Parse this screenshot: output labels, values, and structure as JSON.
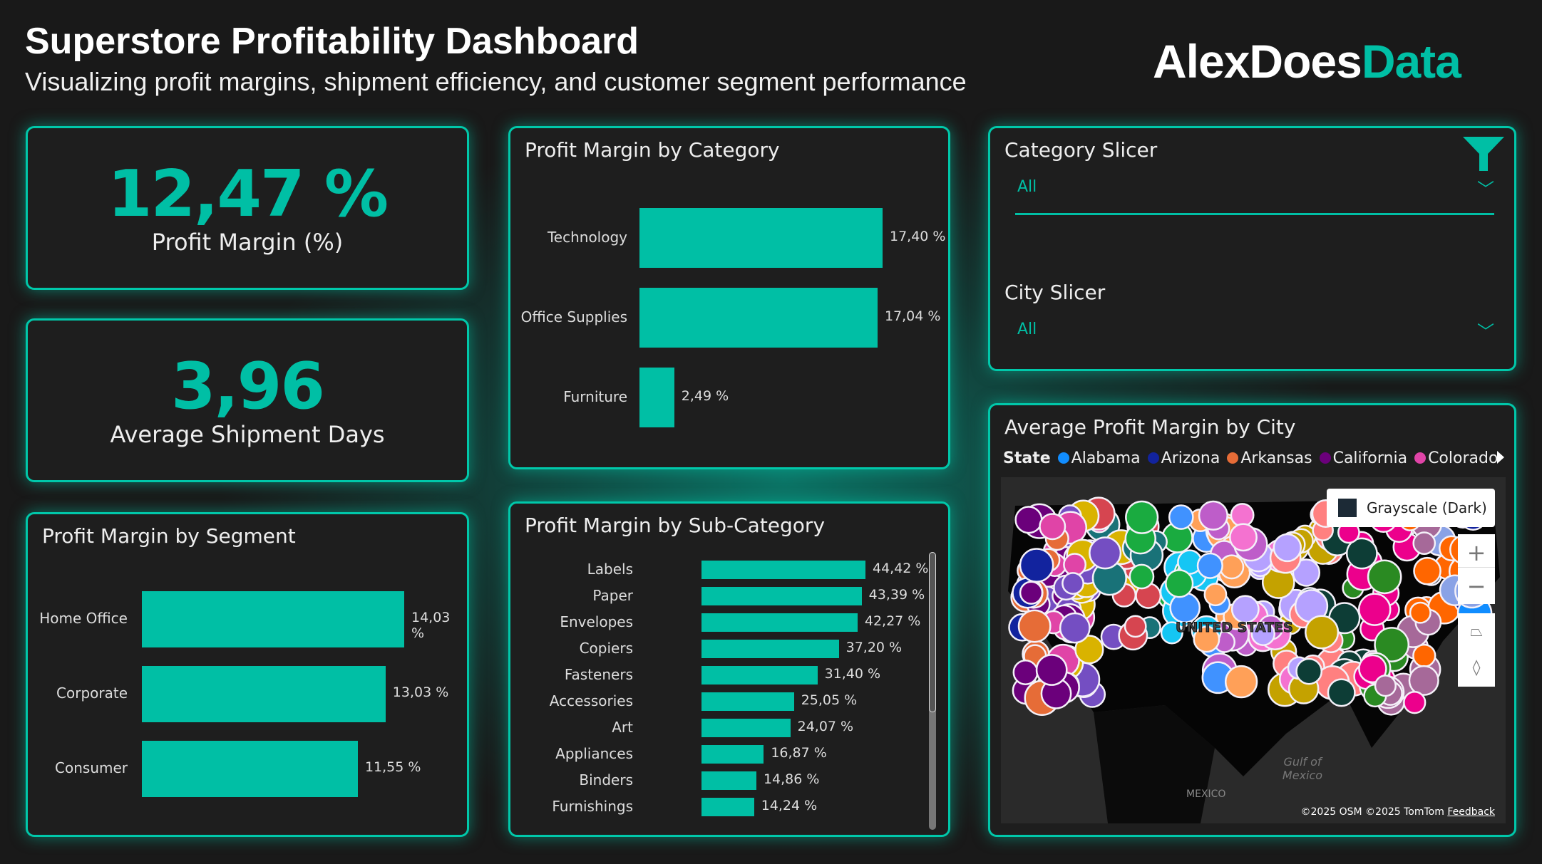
{
  "header": {
    "title": "Superstore Profitability Dashboard",
    "subtitle": "Visualizing profit margins, shipment efficiency, and customer segment performance",
    "logo_a": "AlexDoes",
    "logo_b": "Data"
  },
  "kpis": [
    {
      "value": "12,47 %",
      "label": "Profit Margin (%)"
    },
    {
      "value": "3,96",
      "label": "Average Shipment Days"
    }
  ],
  "segment": {
    "title": "Profit Margin by Segment",
    "rows": [
      {
        "label": "Home Office",
        "value": 14.03,
        "text": "14,03 %"
      },
      {
        "label": "Corporate",
        "value": 13.03,
        "text": "13,03 %"
      },
      {
        "label": "Consumer",
        "value": 11.55,
        "text": "11,55 %"
      }
    ]
  },
  "category": {
    "title": "Profit Margin by Category",
    "rows": [
      {
        "label": "Technology",
        "value": 17.4,
        "text": "17,40 %"
      },
      {
        "label": "Office Supplies",
        "value": 17.04,
        "text": "17,04 %"
      },
      {
        "label": "Furniture",
        "value": 2.49,
        "text": "2,49 %"
      }
    ]
  },
  "subcategory": {
    "title": "Profit Margin by Sub-Category",
    "rows": [
      {
        "label": "Labels",
        "value": 44.42,
        "text": "44,42 %"
      },
      {
        "label": "Paper",
        "value": 43.39,
        "text": "43,39 %"
      },
      {
        "label": "Envelopes",
        "value": 42.27,
        "text": "42,27 %"
      },
      {
        "label": "Copiers",
        "value": 37.2,
        "text": "37,20 %"
      },
      {
        "label": "Fasteners",
        "value": 31.4,
        "text": "31,40 %"
      },
      {
        "label": "Accessories",
        "value": 25.05,
        "text": "25,05 %"
      },
      {
        "label": "Art",
        "value": 24.07,
        "text": "24,07 %"
      },
      {
        "label": "Appliances",
        "value": 16.87,
        "text": "16,87 %"
      },
      {
        "label": "Binders",
        "value": 14.86,
        "text": "14,86 %"
      },
      {
        "label": "Furnishings",
        "value": 14.24,
        "text": "14,24 %"
      }
    ]
  },
  "slicers": {
    "category_label": "Category Slicer",
    "category_value": "All",
    "city_label": "City Slicer",
    "city_value": "All"
  },
  "map": {
    "title": "Average Profit Margin by City",
    "legend_title": "State",
    "legend": [
      {
        "name": "Alabama",
        "color": "#118dff"
      },
      {
        "name": "Arizona",
        "color": "#12239e"
      },
      {
        "name": "Arkansas",
        "color": "#e66c37"
      },
      {
        "name": "California",
        "color": "#6b007b"
      },
      {
        "name": "Colorado",
        "color": "#e044a7"
      }
    ],
    "style_button": "Grayscale (Dark)",
    "country_label": "UNITED STATES",
    "gulf_label": "Gulf of Mexico",
    "mexico_label": "MEXICO",
    "attribution": "©2025 OSM  ©2025 TomTom",
    "feedback": "Feedback",
    "palette": [
      "#118dff",
      "#12239e",
      "#e66c37",
      "#6b007b",
      "#e044a7",
      "#744ec2",
      "#d9b300",
      "#d64550",
      "#197278",
      "#1aab40",
      "#15c6f4",
      "#4092ff",
      "#ffa058",
      "#be5dc9",
      "#f472d0",
      "#b5a1ff",
      "#c4a200",
      "#ff8080",
      "#0d3d36",
      "#2a8a22",
      "#ec008c",
      "#a66999",
      "#3d4452",
      "#ff6600",
      "#8aa2e6"
    ]
  },
  "accent": "#00bfa5"
}
